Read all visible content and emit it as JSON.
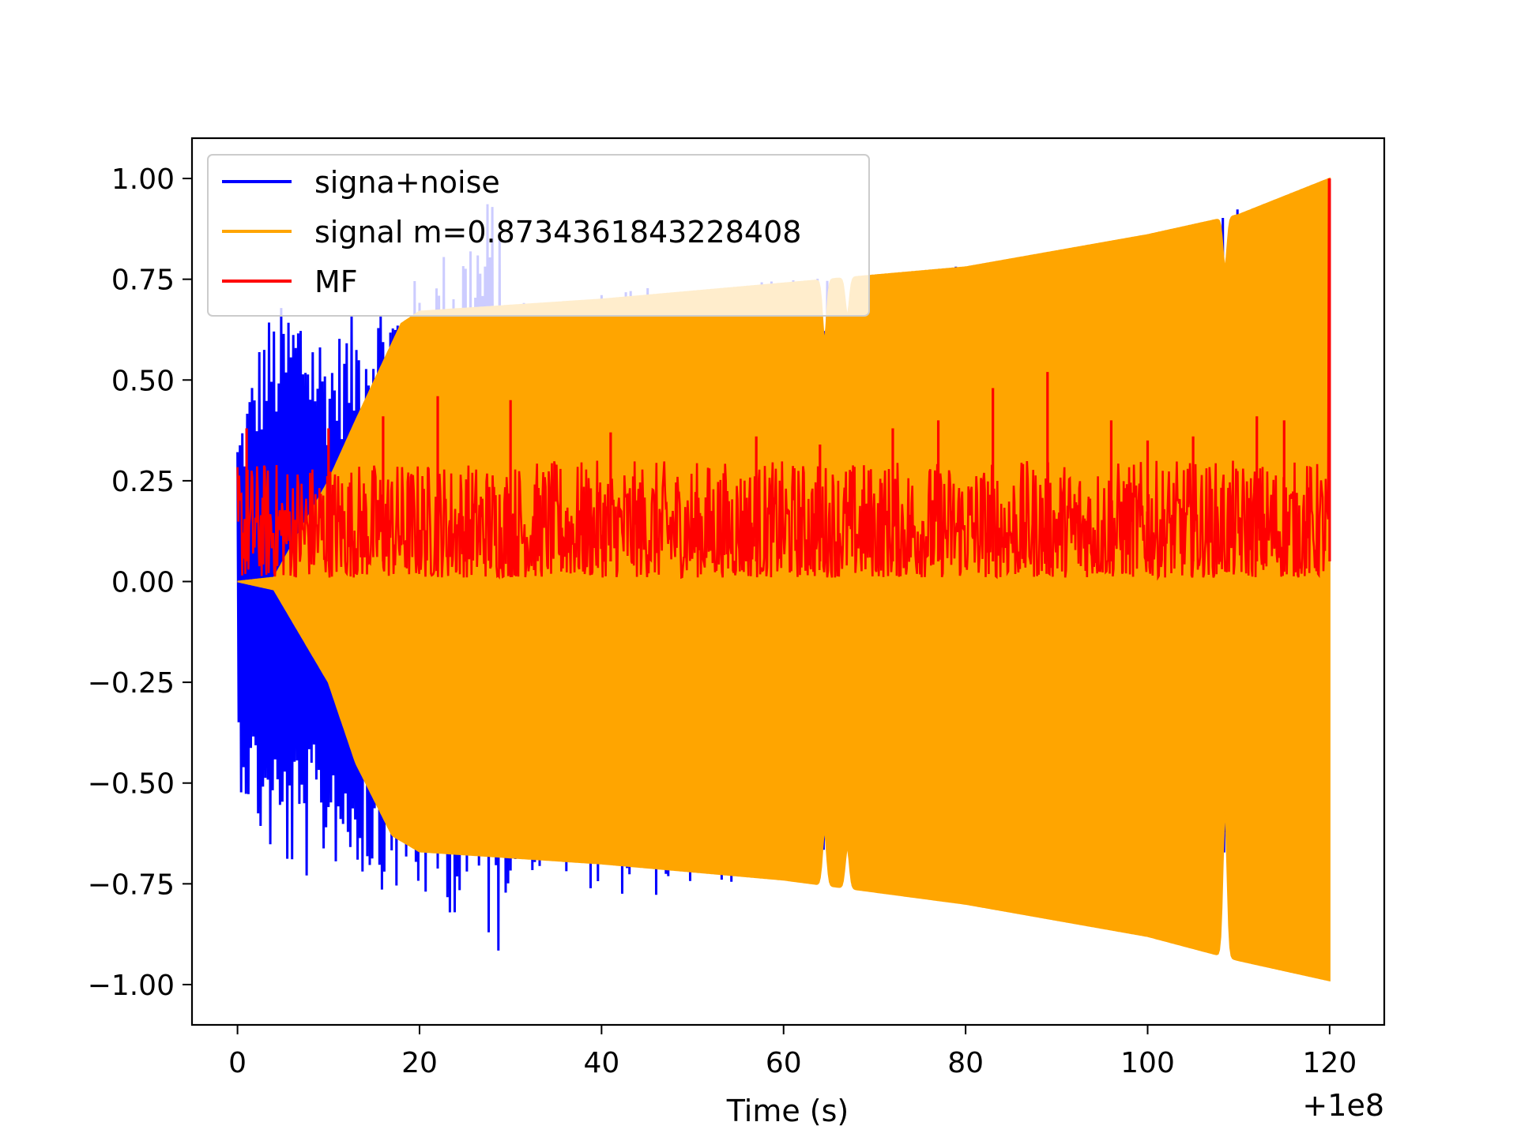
{
  "chart_data": {
    "type": "line",
    "title": "",
    "xlabel": "Time (s)",
    "ylabel": "",
    "x_offset_label": "+1e8",
    "xlim": [
      -5,
      126
    ],
    "ylim": [
      -1.1,
      1.1
    ],
    "x_ticks": [
      {
        "value": 0,
        "label": "0"
      },
      {
        "value": 20,
        "label": "20"
      },
      {
        "value": 40,
        "label": "40"
      },
      {
        "value": 60,
        "label": "60"
      },
      {
        "value": 80,
        "label": "80"
      },
      {
        "value": 100,
        "label": "100"
      },
      {
        "value": 120,
        "label": "120"
      }
    ],
    "y_ticks": [
      {
        "value": 1.0,
        "label": "1.00"
      },
      {
        "value": 0.75,
        "label": "0.75"
      },
      {
        "value": 0.5,
        "label": "0.50"
      },
      {
        "value": 0.25,
        "label": "0.25"
      },
      {
        "value": 0.0,
        "label": "0.00"
      },
      {
        "value": -0.25,
        "label": "−0.25"
      },
      {
        "value": -0.5,
        "label": "−0.50"
      },
      {
        "value": -0.75,
        "label": "−0.75"
      },
      {
        "value": -1.0,
        "label": "−1.00"
      }
    ],
    "grid": false,
    "legend_position": "top-left",
    "series": [
      {
        "name": "signa+noise",
        "color": "#0000ff",
        "x_range": [
          0,
          120
        ],
        "envelope_upper": [
          [
            0,
            0.38
          ],
          [
            3,
            0.66
          ],
          [
            7,
            0.72
          ],
          [
            10,
            0.6
          ],
          [
            15,
            0.72
          ],
          [
            20,
            0.76
          ],
          [
            28,
            0.98
          ],
          [
            30,
            0.72
          ],
          [
            40,
            0.72
          ],
          [
            60,
            0.76
          ],
          [
            90,
            0.8
          ],
          [
            120,
            1.0
          ]
        ],
        "envelope_lower": [
          [
            0,
            -0.5
          ],
          [
            3,
            -0.68
          ],
          [
            7,
            -0.76
          ],
          [
            10,
            -0.7
          ],
          [
            19,
            -0.8
          ],
          [
            27,
            -0.85
          ],
          [
            28.5,
            -0.97
          ],
          [
            30,
            -0.72
          ],
          [
            44,
            -0.79
          ],
          [
            60,
            -0.74
          ],
          [
            90,
            -0.83
          ],
          [
            120,
            -0.98
          ]
        ]
      },
      {
        "name": "signal m=0.8734361843228408",
        "color": "#ffa500",
        "x_range": [
          0,
          120
        ],
        "envelope_upper": [
          [
            0,
            0.0
          ],
          [
            4,
            0.01
          ],
          [
            10,
            0.25
          ],
          [
            13,
            0.4
          ],
          [
            18,
            0.64
          ],
          [
            20,
            0.67
          ],
          [
            40,
            0.7
          ],
          [
            60,
            0.74
          ],
          [
            80,
            0.78
          ],
          [
            100,
            0.86
          ],
          [
            110,
            0.91
          ],
          [
            120,
            1.0
          ]
        ],
        "envelope_lower": [
          [
            0,
            0.0
          ],
          [
            4,
            -0.02
          ],
          [
            10,
            -0.25
          ],
          [
            13,
            -0.45
          ],
          [
            17,
            -0.63
          ],
          [
            20,
            -0.67
          ],
          [
            40,
            -0.7
          ],
          [
            60,
            -0.74
          ],
          [
            80,
            -0.8
          ],
          [
            100,
            -0.88
          ],
          [
            110,
            -0.94
          ],
          [
            120,
            -0.99
          ]
        ],
        "dips": [
          [
            64.5,
            0.6,
            -0.62
          ],
          [
            67,
            0.66,
            -0.66
          ],
          [
            108.5,
            0.78,
            -0.57
          ]
        ]
      },
      {
        "name": "MF",
        "color": "#ff0000",
        "x_range": [
          0,
          120
        ],
        "baseline": 0.0,
        "typical_range": [
          0.01,
          0.3
        ],
        "peaks": [
          [
            1,
            0.38
          ],
          [
            10,
            0.38
          ],
          [
            16,
            0.41
          ],
          [
            22,
            0.46
          ],
          [
            30,
            0.45
          ],
          [
            41,
            0.37
          ],
          [
            57,
            0.36
          ],
          [
            64,
            0.34
          ],
          [
            72,
            0.38
          ],
          [
            77,
            0.4
          ],
          [
            83,
            0.48
          ],
          [
            89,
            0.52
          ],
          [
            96,
            0.4
          ],
          [
            100,
            0.35
          ],
          [
            105,
            0.36
          ],
          [
            112,
            0.41
          ],
          [
            115,
            0.4
          ],
          [
            120,
            1.0
          ]
        ]
      }
    ]
  }
}
